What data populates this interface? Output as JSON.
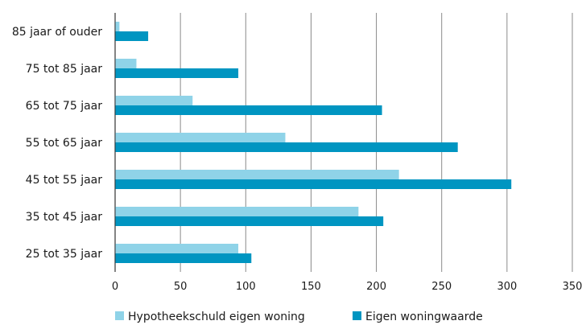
{
  "chart_data": {
    "type": "bar",
    "orientation": "horizontal",
    "categories": [
      "85 jaar of ouder",
      "75 tot 85 jaar",
      "65 tot 75 jaar",
      "55 tot 65 jaar",
      "45 tot 55 jaar",
      "35 tot 45 jaar",
      "25 tot 35 jaar"
    ],
    "series": [
      {
        "name": "Hypotheekschuld eigen woning",
        "values": [
          3,
          16,
          59,
          130,
          217,
          186,
          94
        ],
        "color": "#8fd3e8"
      },
      {
        "name": "Eigen woningwaarde",
        "values": [
          25,
          94,
          204,
          262,
          303,
          205,
          104
        ],
        "color": "#0095c1"
      }
    ],
    "x_ticks": [
      0,
      50,
      100,
      150,
      200,
      250,
      300,
      350
    ],
    "xlim": [
      0,
      350
    ],
    "grid": "vertical",
    "legend_position": "bottom"
  }
}
